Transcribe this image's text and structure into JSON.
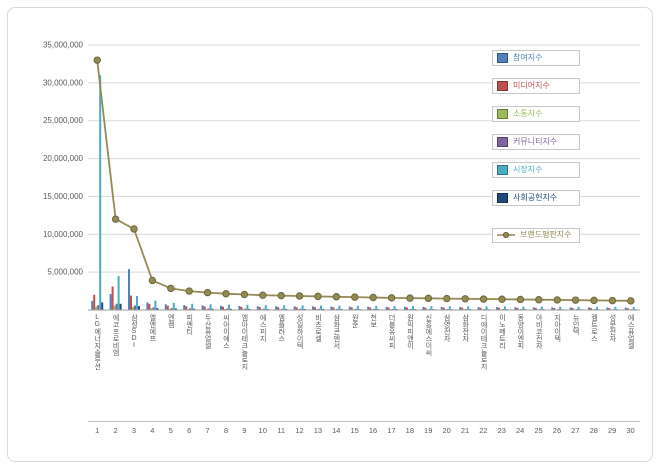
{
  "chart_data": {
    "type": "bar+line",
    "title": "",
    "xlabel": "",
    "ylabel": "",
    "ylim": [
      0,
      35000000
    ],
    "ytick_interval": 5000000,
    "ytick_values": [
      5000000,
      10000000,
      15000000,
      20000000,
      25000000,
      30000000,
      35000000
    ],
    "ytick_labels": [
      "5,000,000",
      "10,000,000",
      "15,000,000",
      "20,000,000",
      "25,000,000",
      "30,000,000",
      "35,000,000"
    ],
    "grid": true,
    "legend_position": "right-top",
    "categories": [
      "LG에너지솔루션",
      "에코프로비엠",
      "삼성SDI",
      "엘앤에프",
      "엔켐",
      "피엔티",
      "두산퓨얼셀",
      "씨아이에스",
      "엠아이테크놀로지",
      "에스피지",
      "엠플러스",
      "성일하이텍",
      "비츠로셀",
      "삼화콘덴서",
      "원준",
      "천보",
      "더블유씨피",
      "원익피앤이",
      "신흥에스이씨",
      "삼영전자",
      "삼화전자",
      "디에이테크놀로지",
      "이노메트리",
      "동양이엔피",
      "아비코전자",
      "지아이텍",
      "뉴인텍",
      "켐트로스",
      "성문전자",
      "에스퓨얼셀"
    ],
    "rank_labels": [
      "1",
      "2",
      "3",
      "4",
      "5",
      "6",
      "7",
      "8",
      "9",
      "10",
      "11",
      "12",
      "13",
      "14",
      "15",
      "16",
      "17",
      "18",
      "19",
      "20",
      "21",
      "22",
      "23",
      "24",
      "25",
      "26",
      "27",
      "28",
      "29",
      "30"
    ],
    "series": [
      {
        "name": "참여지수",
        "type": "bar",
        "color": "#4F81BD",
        "values": [
          1200000,
          2100000,
          5400000,
          1000000,
          750000,
          650000,
          600000,
          560000,
          530000,
          500000,
          490000,
          480000,
          470000,
          455000,
          440000,
          430000,
          415000,
          410000,
          400000,
          395000,
          385000,
          380000,
          370000,
          360000,
          355000,
          345000,
          340000,
          330000,
          325000,
          315000
        ]
      },
      {
        "name": "미디어지수",
        "type": "bar",
        "color": "#C0504D",
        "values": [
          2000000,
          3100000,
          1900000,
          820000,
          570000,
          500000,
          460000,
          430000,
          410000,
          390000,
          380000,
          370000,
          360000,
          350000,
          340000,
          330000,
          320000,
          314000,
          308000,
          302000,
          296000,
          290000,
          284000,
          278000,
          272000,
          266000,
          260000,
          254000,
          248000,
          242000
        ]
      },
      {
        "name": "소통지수",
        "type": "bar",
        "color": "#9BBB59",
        "values": [
          450000,
          600000,
          430000,
          240000,
          170000,
          150000,
          140000,
          130000,
          123000,
          117000,
          114000,
          111000,
          108000,
          105000,
          102000,
          99000,
          96000,
          94000,
          92000,
          91000,
          89000,
          87000,
          85000,
          83000,
          82000,
          80000,
          78000,
          76000,
          74000,
          73000
        ]
      },
      {
        "name": "커뮤니티지수",
        "type": "bar",
        "color": "#8064A2",
        "values": [
          650000,
          820000,
          590000,
          350000,
          256000,
          225000,
          207000,
          194000,
          185000,
          176000,
          171000,
          167000,
          162000,
          158000,
          153000,
          149000,
          144000,
          141000,
          139000,
          136000,
          133000,
          131000,
          128000,
          125000,
          122000,
          120000,
          117000,
          114000,
          112000,
          109000
        ]
      },
      {
        "name": "시장지수",
        "type": "bar",
        "color": "#4BACC6",
        "values": [
          31000000,
          4500000,
          1850000,
          1250000,
          940000,
          825000,
          759000,
          710000,
          677000,
          644000,
          627000,
          611000,
          594000,
          578000,
          561000,
          545000,
          528000,
          518000,
          508000,
          498000,
          488000,
          479000,
          469000,
          459000,
          449000,
          439000,
          429000,
          419000,
          409000,
          399000
        ]
      },
      {
        "name": "사회공헌지수",
        "type": "bar",
        "color": "#1F497D",
        "values": [
          1000000,
          820000,
          520000,
          260000,
          200000,
          175000,
          161000,
          151000,
          144000,
          137000,
          133000,
          130000,
          126000,
          123000,
          119000,
          116000,
          112000,
          110000,
          108000,
          106000,
          104000,
          102000,
          99000,
          97000,
          95000,
          93000,
          91000,
          89000,
          87000,
          85000
        ]
      },
      {
        "name": "브랜드평판지수",
        "type": "line",
        "color": "#948A54",
        "marker_stroke": "#6E6637",
        "values": [
          33000000,
          12000000,
          10700000,
          3900000,
          2850000,
          2500000,
          2300000,
          2150000,
          2050000,
          1950000,
          1900000,
          1850000,
          1800000,
          1750000,
          1700000,
          1650000,
          1600000,
          1570000,
          1540000,
          1510000,
          1480000,
          1450000,
          1420000,
          1390000,
          1360000,
          1330000,
          1300000,
          1270000,
          1240000,
          1210000
        ]
      }
    ],
    "colors": {
      "gridline": "#d9d9d9",
      "axis": "#9d9d9d",
      "tick_text": "#595959"
    }
  }
}
